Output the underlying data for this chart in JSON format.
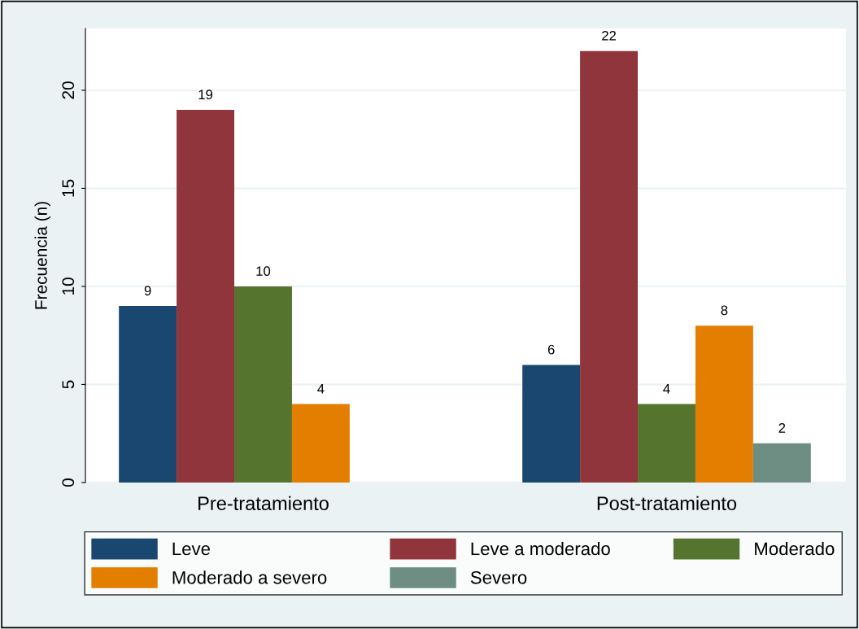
{
  "chart_data": {
    "type": "bar",
    "ylabel": "Frecuencia (n)",
    "categories": [
      "Pre-tratamiento",
      "Post-tratamiento"
    ],
    "series": [
      {
        "name": "Leve",
        "color": "#1a476f",
        "values": [
          9,
          6
        ]
      },
      {
        "name": "Leve a moderado",
        "color": "#90353b",
        "values": [
          19,
          22
        ]
      },
      {
        "name": "Moderado",
        "color": "#55752f",
        "values": [
          10,
          4
        ]
      },
      {
        "name": "Moderado a severo",
        "color": "#e37e00",
        "values": [
          4,
          8
        ]
      },
      {
        "name": "Severo",
        "color": "#6e8e84",
        "values": [
          null,
          2
        ]
      }
    ],
    "ylim": [
      0,
      23.15
    ],
    "yticks": [
      0,
      5,
      10,
      15,
      20
    ],
    "grid": "y",
    "legend": "bottom",
    "data_labels": true
  }
}
